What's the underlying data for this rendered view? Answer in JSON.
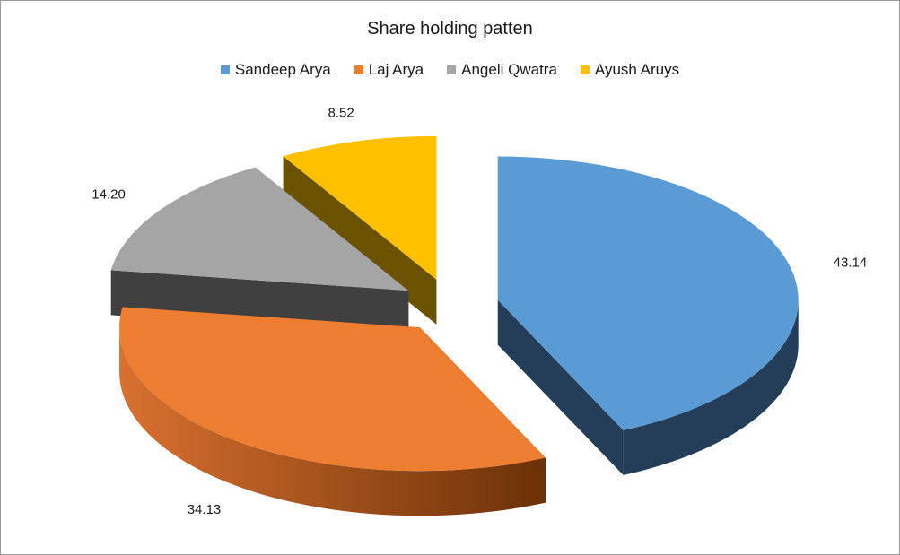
{
  "chart_data": {
    "type": "pie",
    "title": "Share holding patten",
    "categories": [
      "Sandeep Arya",
      "Laj Arya",
      "Angeli Qwatra",
      "Ayush Aruys"
    ],
    "values": [
      43.14,
      34.13,
      14.2,
      8.52
    ],
    "labels": [
      "43.14",
      "34.13",
      "14.20",
      "8.52"
    ],
    "legend_position": "top",
    "style": "3d-exploded",
    "series": [
      {
        "name": "Sandeep Arya",
        "value": 43.14,
        "color": "#5b9bd5",
        "side_color": "#243d58"
      },
      {
        "name": "Laj Arya",
        "value": 34.13,
        "color": "#ed7d31",
        "side_color": "#a24e15"
      },
      {
        "name": "Angeli Qwatra",
        "value": 14.2,
        "color": "#a5a5a5",
        "side_color": "#404040"
      },
      {
        "name": "Ayush Aruys",
        "value": 8.52,
        "color": "#ffc000",
        "side_color": "#6b5200"
      }
    ]
  }
}
